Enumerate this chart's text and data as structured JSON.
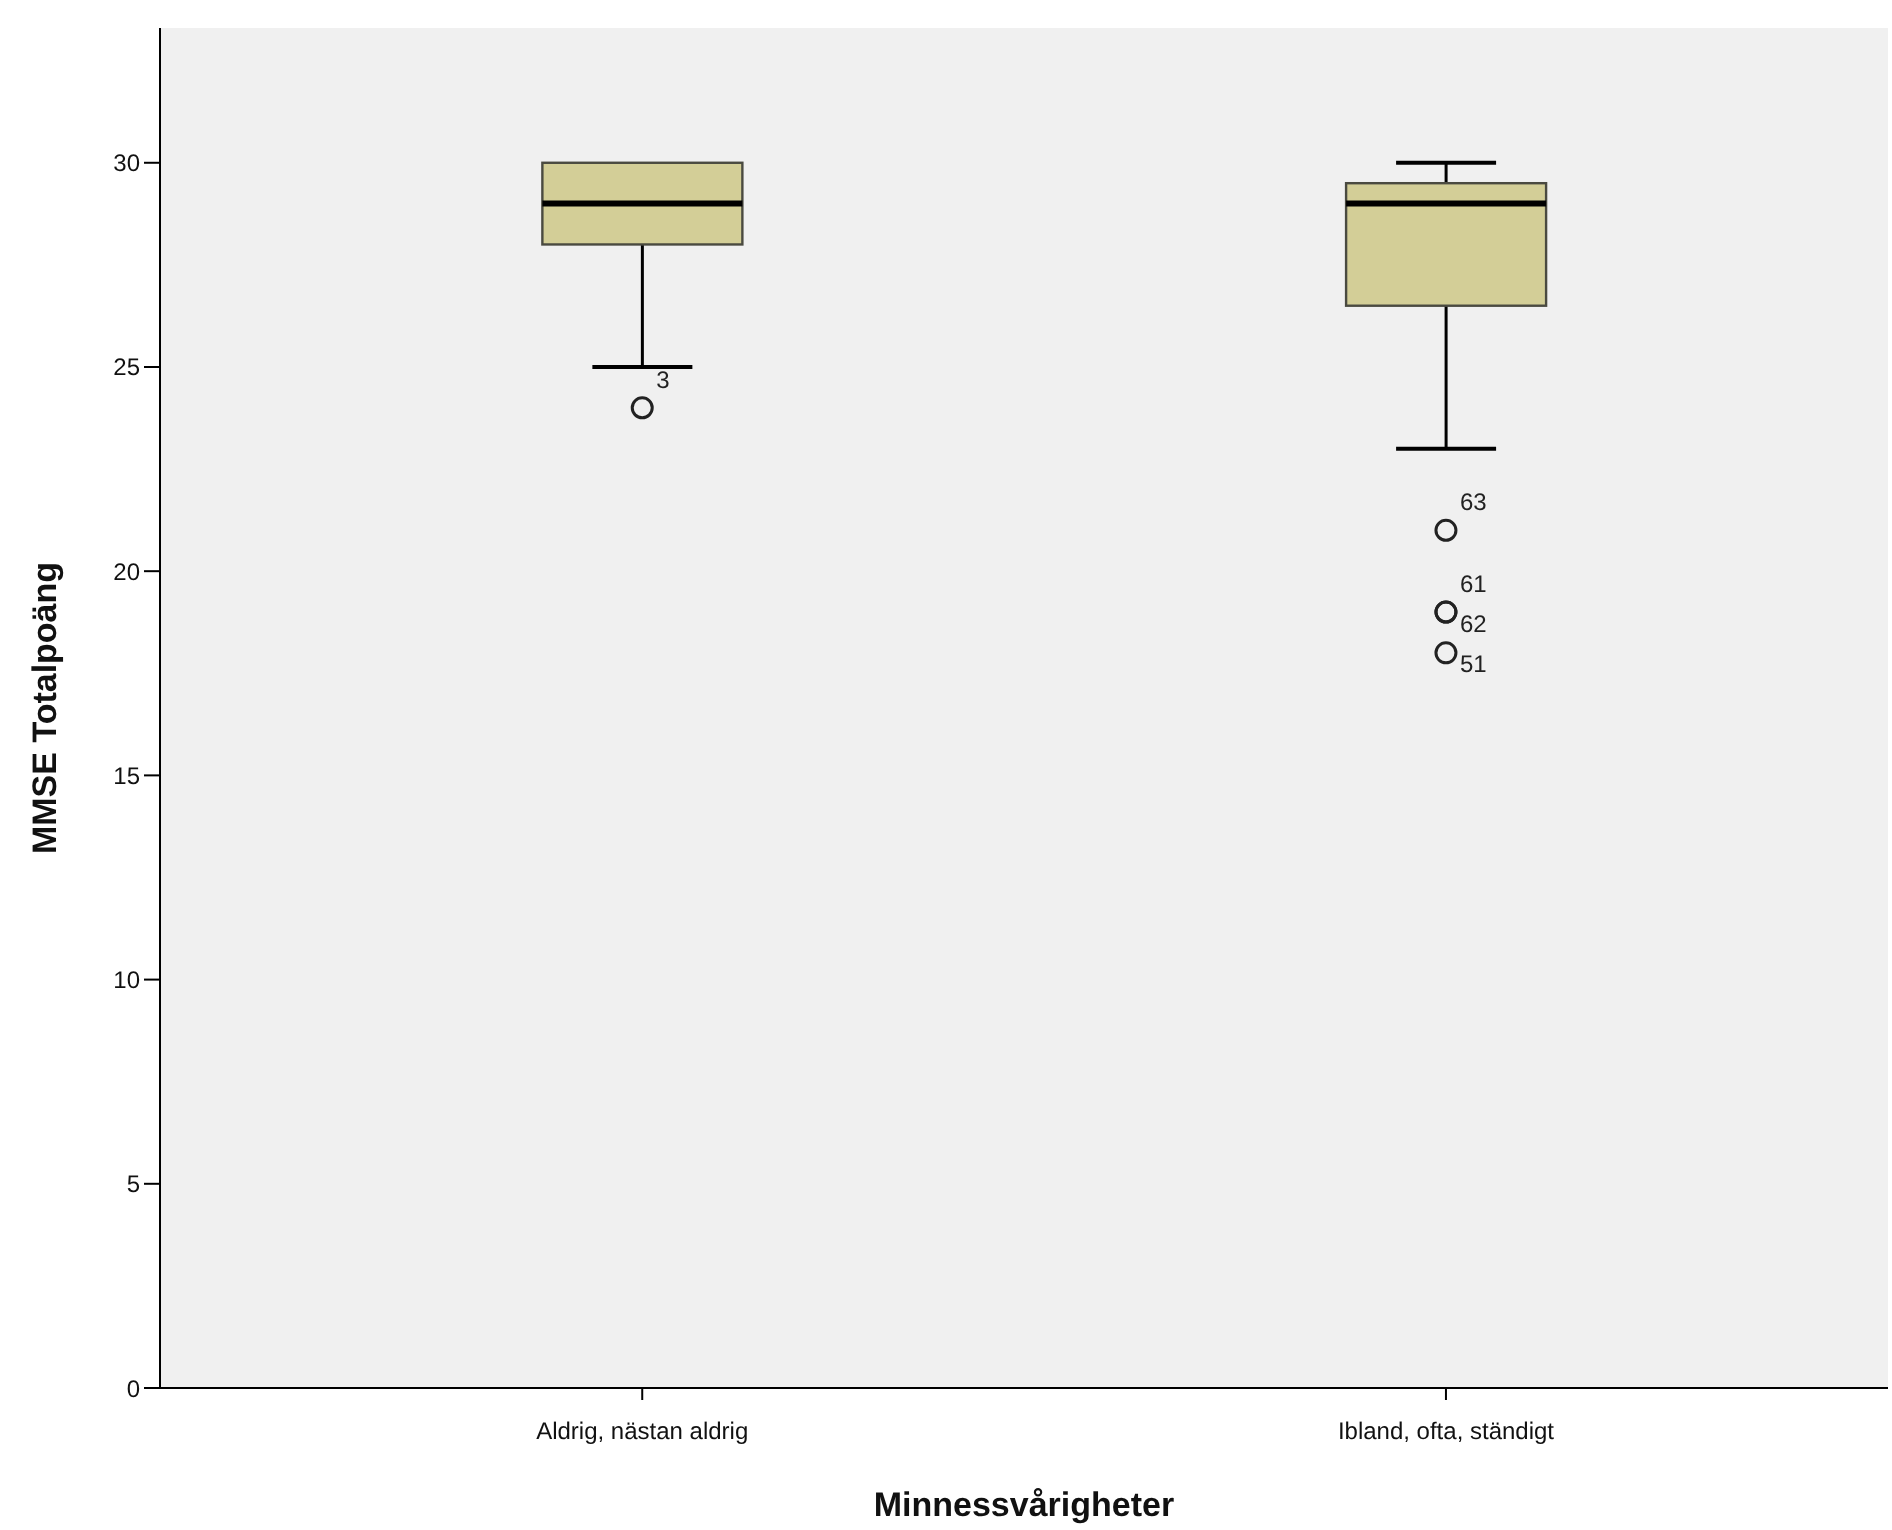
{
  "chart_data": {
    "type": "box",
    "categories": [
      "Aldrig, nästan aldrig",
      "Ibland, ofta, ständigt"
    ],
    "boxes": [
      {
        "low": 25,
        "q1": 28,
        "median": 29,
        "q3": 30,
        "high": 30,
        "outliers": [
          24
        ]
      },
      {
        "low": 23,
        "q1": 26.5,
        "median": 29,
        "q3": 29.5,
        "high": 30,
        "outliers": [
          21,
          19,
          19,
          18
        ]
      }
    ],
    "color": "#d3ce97",
    "xlabel": "Minnessvårigheter",
    "ylabel": "MMSE Totalpoäng",
    "ylim": [
      0,
      33.3
    ],
    "yticks": [
      0,
      5,
      10,
      15,
      20,
      25,
      30
    ],
    "annotations": [
      "3",
      "63",
      "61",
      "62",
      "51"
    ]
  }
}
